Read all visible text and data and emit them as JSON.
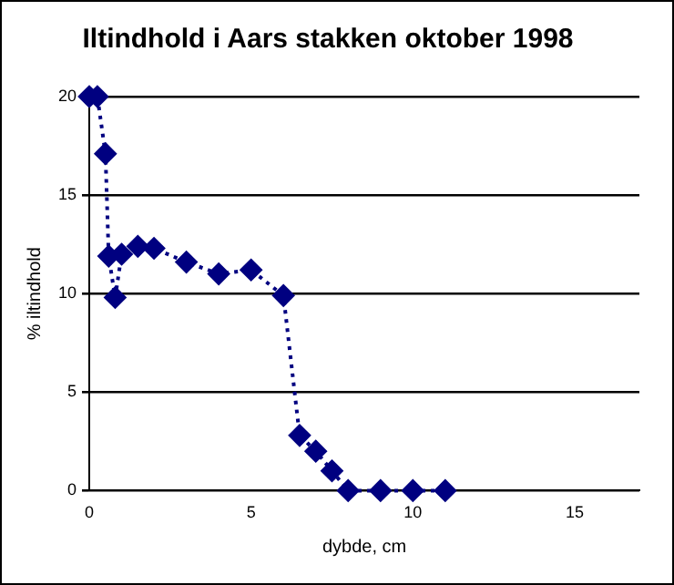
{
  "chart_data": {
    "type": "line",
    "title": "Iltindhold i Aars stakken oktober 1998",
    "xlabel": "dybde, cm",
    "ylabel": "% iltindhold",
    "x": [
      0,
      0.25,
      0.5,
      0.6,
      0.8,
      1,
      1.5,
      2,
      3,
      4,
      5,
      6,
      6.5,
      7,
      7.5,
      8,
      9,
      10,
      11
    ],
    "series": [
      {
        "color": "#000080",
        "values": [
          20,
          20,
          17.1,
          11.9,
          9.8,
          12,
          12.4,
          12.3,
          11.6,
          11,
          11.2,
          9.9,
          2.8,
          2,
          1,
          0,
          0,
          0,
          0
        ]
      }
    ],
    "xlim": [
      0,
      17
    ],
    "xticks": [
      0,
      5,
      10,
      15
    ],
    "ylim": [
      0,
      20
    ],
    "yticks": [
      0,
      5,
      10,
      15,
      20
    ],
    "grid": "y",
    "legend": false,
    "marker": "diamond",
    "line_style": "dotted"
  }
}
